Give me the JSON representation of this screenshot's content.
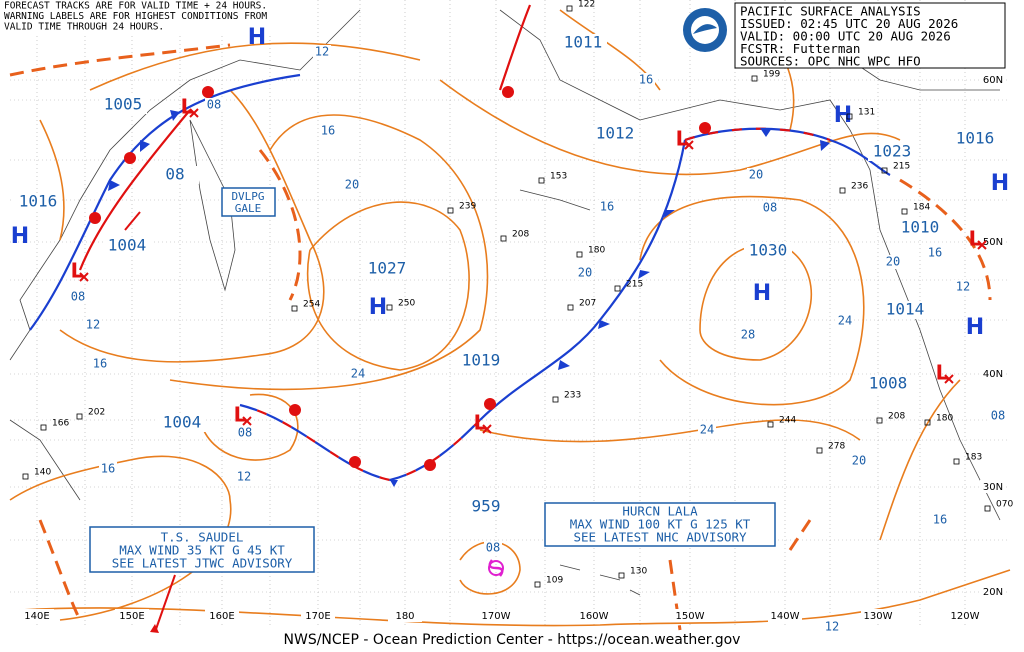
{
  "header": {
    "lines": [
      "PACIFIC SURFACE ANALYSIS",
      "ISSUED: 02:45 UTC 20 AUG 2026",
      "VALID: 00:00 UTC 20 AUG 2026",
      "FCSTR: Futterman",
      "SOURCES: OPC NHC WPC HFO"
    ]
  },
  "notice": {
    "lines": [
      "FORECAST TRACKS ARE FOR VALID TIME + 24 HOURS.",
      "WARNING LABELS ARE FOR HIGHEST CONDITIONS FROM",
      "VALID TIME THROUGH 24 HOURS."
    ]
  },
  "footer": "NWS/NCEP - Ocean Prediction Center - https://ocean.weather.gov",
  "gale": {
    "lines": [
      "DVLPG",
      "GALE"
    ]
  },
  "advisories": [
    {
      "lines": [
        "T.S. SAUDEL",
        "MAX WIND 35 KT G 45 KT",
        "SEE LATEST JTWC ADVISORY"
      ]
    },
    {
      "lines": [
        "HURCN LALA",
        "MAX WIND 100 KT G 125 KT",
        "SEE LATEST NHC ADVISORY"
      ]
    }
  ],
  "pressure_labels": [
    "1005",
    "08",
    "1004",
    "1016",
    "1027",
    "1011",
    "1012",
    "1023",
    "1016",
    "1010",
    "1030",
    "1014",
    "1008",
    "1019",
    "1004",
    "959"
  ],
  "isobar_labels": [
    "12",
    "16",
    "20",
    "24",
    "16",
    "12",
    "08",
    "08",
    "12",
    "16",
    "16",
    "16",
    "20",
    "20",
    "08",
    "24",
    "28",
    "24",
    "20",
    "16",
    "12",
    "16",
    "20",
    "08",
    "08",
    "12",
    "08"
  ],
  "highs": [
    "H",
    "H",
    "H",
    "H",
    "H",
    "H",
    "H"
  ],
  "lows": [
    "L",
    "L",
    "L",
    "L",
    "L",
    "L",
    "L"
  ],
  "longitudes": [
    "140E",
    "150E",
    "160E",
    "170E",
    "180",
    "170W",
    "160W",
    "150W",
    "140W",
    "130W",
    "120W"
  ],
  "latitudes": [
    "60N",
    "50N",
    "40N",
    "30N",
    "20N"
  ],
  "stations": [
    "202",
    "166",
    "140",
    "254",
    "250",
    "239",
    "208",
    "180",
    "207",
    "215",
    "153",
    "233",
    "244",
    "278",
    "208",
    "180",
    "183",
    "199",
    "131",
    "184",
    "236",
    "215",
    "109",
    "130",
    "122",
    "070"
  ]
}
